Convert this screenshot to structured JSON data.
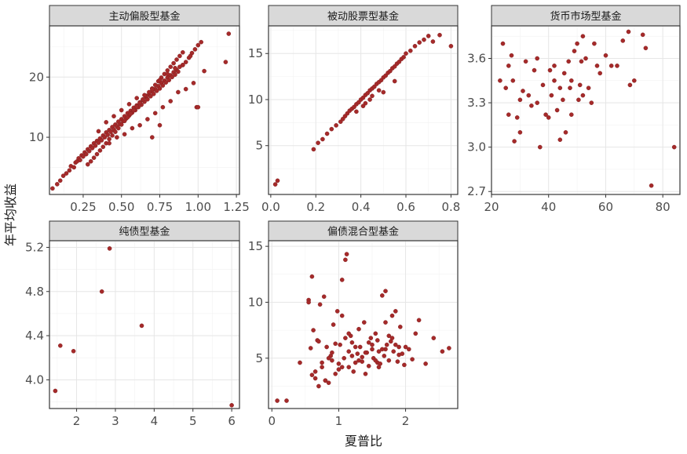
{
  "chart_data": {
    "type": "scatter",
    "xlabel": "夏普比",
    "ylabel": "年平均收益",
    "point_color": "#a52a2a",
    "panels": [
      {
        "title": "主动偏股型基金",
        "xlim": [
          0.03,
          1.27
        ],
        "ylim": [
          0.5,
          28.5
        ],
        "xticks": [
          0.25,
          0.5,
          0.75,
          1.0,
          1.25
        ],
        "xtick_labels": [
          "0.25",
          "0.50",
          "0.75",
          "1.00",
          "1.25"
        ],
        "yticks": [
          10,
          20
        ],
        "ytick_labels": [
          "10",
          "20"
        ],
        "x": [
          0.05,
          0.08,
          0.1,
          0.12,
          0.14,
          0.16,
          0.17,
          0.19,
          0.2,
          0.21,
          0.22,
          0.23,
          0.24,
          0.25,
          0.26,
          0.27,
          0.28,
          0.29,
          0.3,
          0.31,
          0.32,
          0.33,
          0.34,
          0.35,
          0.36,
          0.37,
          0.38,
          0.39,
          0.4,
          0.41,
          0.42,
          0.43,
          0.44,
          0.45,
          0.46,
          0.47,
          0.48,
          0.49,
          0.5,
          0.51,
          0.52,
          0.53,
          0.54,
          0.55,
          0.56,
          0.57,
          0.58,
          0.59,
          0.6,
          0.61,
          0.62,
          0.63,
          0.64,
          0.65,
          0.66,
          0.67,
          0.68,
          0.69,
          0.7,
          0.71,
          0.72,
          0.73,
          0.74,
          0.75,
          0.76,
          0.77,
          0.78,
          0.79,
          0.8,
          0.81,
          0.82,
          0.83,
          0.84,
          0.85,
          0.86,
          0.87,
          0.88,
          0.9,
          0.92,
          0.94,
          0.96,
          0.98,
          1.0,
          1.02,
          1.04,
          1.18,
          1.2,
          0.28,
          0.3,
          0.32,
          0.34,
          0.36,
          0.38,
          0.4,
          0.42,
          0.44,
          0.46,
          0.48,
          0.5,
          0.52,
          0.54,
          0.56,
          0.58,
          0.6,
          0.62,
          0.64,
          0.66,
          0.68,
          0.7,
          0.72,
          0.74,
          0.76,
          0.78,
          0.8,
          0.82,
          0.84,
          0.86,
          0.88,
          0.9,
          0.35,
          0.4,
          0.45,
          0.5,
          0.55,
          0.6,
          0.65,
          0.7,
          0.75,
          0.8,
          0.85,
          0.9,
          0.95,
          0.42,
          0.47,
          0.52,
          0.57,
          0.62,
          0.67,
          0.72,
          0.77,
          0.82,
          0.87,
          0.92,
          0.97,
          0.99,
          1.0,
          0.7,
          0.75
        ],
        "y": [
          1.5,
          2.2,
          2.8,
          3.6,
          4.0,
          4.5,
          5.2,
          5.0,
          5.8,
          6.0,
          6.5,
          6.2,
          7.0,
          6.8,
          7.5,
          7.2,
          8.0,
          7.7,
          8.5,
          8.2,
          9.0,
          8.6,
          9.4,
          9.1,
          9.8,
          9.5,
          10.3,
          10.0,
          10.8,
          10.4,
          11.2,
          10.9,
          11.7,
          11.3,
          12.1,
          11.8,
          12.6,
          12.2,
          13.0,
          12.7,
          13.5,
          13.1,
          14.0,
          13.6,
          14.4,
          14.1,
          14.9,
          14.5,
          15.3,
          15.0,
          15.8,
          15.4,
          16.2,
          15.9,
          16.7,
          16.3,
          17.1,
          16.8,
          17.6,
          17.2,
          18.0,
          17.7,
          18.5,
          18.1,
          19.0,
          18.6,
          19.4,
          19.1,
          19.9,
          19.5,
          20.3,
          20.0,
          20.8,
          20.4,
          21.2,
          20.9,
          21.7,
          22.0,
          22.5,
          23.2,
          24.0,
          24.6,
          25.3,
          25.8,
          21.0,
          22.5,
          27.2,
          5.5,
          6.0,
          6.6,
          7.2,
          7.8,
          8.4,
          9.0,
          9.7,
          10.3,
          10.9,
          11.5,
          12.1,
          12.7,
          13.3,
          13.9,
          14.5,
          15.1,
          15.7,
          16.3,
          16.9,
          17.5,
          18.1,
          18.7,
          19.3,
          19.9,
          20.5,
          21.1,
          21.7,
          22.3,
          22.9,
          23.5,
          24.1,
          11.0,
          12.5,
          13.5,
          14.5,
          15.5,
          16.5,
          17.0,
          18.0,
          19.5,
          20.5,
          21.5,
          22.0,
          23.5,
          9.0,
          10.0,
          10.5,
          11.5,
          12.0,
          13.0,
          14.0,
          15.0,
          16.0,
          17.5,
          18.0,
          19.0,
          15.0,
          15.0,
          10.0,
          12.0
        ]
      },
      {
        "title": "被动股票型基金",
        "xlim": [
          -0.01,
          0.83
        ],
        "ylim": [
          -0.3,
          18.0
        ],
        "xticks": [
          0.0,
          0.2,
          0.4,
          0.6,
          0.8
        ],
        "xtick_labels": [
          "0.0",
          "0.2",
          "0.4",
          "0.6",
          "0.8"
        ],
        "yticks": [
          5,
          10,
          15
        ],
        "ytick_labels": [
          "5",
          "10",
          "15"
        ],
        "x": [
          0.02,
          0.03,
          0.19,
          0.21,
          0.23,
          0.25,
          0.27,
          0.29,
          0.31,
          0.32,
          0.33,
          0.34,
          0.35,
          0.36,
          0.37,
          0.38,
          0.39,
          0.4,
          0.41,
          0.42,
          0.43,
          0.44,
          0.45,
          0.46,
          0.47,
          0.48,
          0.49,
          0.5,
          0.51,
          0.52,
          0.53,
          0.54,
          0.55,
          0.56,
          0.57,
          0.58,
          0.59,
          0.6,
          0.62,
          0.64,
          0.66,
          0.68,
          0.7,
          0.72,
          0.75,
          0.8,
          0.42,
          0.45,
          0.48,
          0.5,
          0.55,
          0.38,
          0.41,
          0.44
        ],
        "y": [
          0.8,
          1.2,
          4.6,
          5.3,
          5.7,
          6.3,
          6.8,
          7.2,
          7.6,
          7.9,
          8.2,
          8.5,
          8.8,
          9.0,
          9.2,
          9.5,
          9.7,
          10.0,
          10.2,
          10.5,
          10.7,
          11.0,
          11.2,
          11.4,
          11.7,
          11.9,
          12.1,
          12.4,
          12.6,
          12.9,
          13.1,
          13.4,
          13.6,
          13.9,
          14.1,
          14.4,
          14.6,
          15.0,
          15.3,
          15.8,
          16.2,
          16.5,
          16.9,
          16.3,
          17.0,
          15.8,
          9.6,
          10.4,
          11.0,
          10.8,
          12.0,
          8.7,
          9.3,
          10.0
        ]
      },
      {
        "title": "货币市场型基金",
        "xlim": [
          20,
          86
        ],
        "ylim": [
          2.68,
          3.82
        ],
        "xticks": [
          20,
          40,
          60,
          80
        ],
        "xtick_labels": [
          "20",
          "40",
          "60",
          "80"
        ],
        "yticks": [
          2.7,
          3.0,
          3.3,
          3.6
        ],
        "ytick_labels": [
          "2.7",
          "3.0",
          "3.3",
          "3.6"
        ],
        "x": [
          23,
          24,
          25,
          26,
          27,
          27.5,
          28,
          29,
          30,
          31,
          32,
          33,
          34,
          35,
          36,
          37,
          38,
          39,
          40,
          40.5,
          41,
          42,
          43,
          44,
          45,
          45.5,
          46,
          47,
          47.5,
          48,
          49,
          50,
          50.5,
          51,
          51.5,
          52,
          53,
          54,
          55,
          56,
          57,
          58,
          60,
          62,
          64,
          66,
          68,
          68.5,
          70,
          73,
          74,
          76,
          84,
          36,
          44,
          48,
          52,
          26,
          30,
          42
        ],
        "y": [
          3.45,
          3.7,
          3.4,
          3.22,
          3.62,
          3.45,
          3.04,
          3.2,
          3.32,
          3.38,
          3.58,
          3.35,
          3.28,
          3.52,
          3.6,
          3.0,
          3.42,
          3.22,
          3.2,
          3.52,
          3.35,
          3.55,
          3.25,
          3.05,
          3.32,
          3.5,
          3.1,
          3.58,
          3.4,
          3.22,
          3.65,
          3.7,
          3.32,
          3.42,
          3.58,
          3.75,
          3.6,
          3.4,
          3.3,
          3.7,
          3.55,
          3.5,
          3.62,
          3.55,
          3.55,
          3.72,
          3.78,
          3.42,
          3.45,
          3.76,
          3.67,
          2.74,
          3.0,
          3.3,
          3.4,
          3.45,
          3.35,
          3.55,
          3.1,
          3.45
        ]
      },
      {
        "title": "纯债型基金",
        "xlim": [
          1.3,
          6.2
        ],
        "ylim": [
          3.74,
          5.26
        ],
        "xticks": [
          2,
          3,
          4,
          5,
          6
        ],
        "xtick_labels": [
          "2",
          "3",
          "4",
          "5",
          "6"
        ],
        "yticks": [
          4.0,
          4.4,
          4.8,
          5.2
        ],
        "ytick_labels": [
          "4.0",
          "4.4",
          "4.8",
          "5.2"
        ],
        "x": [
          1.45,
          1.58,
          1.92,
          2.65,
          2.85,
          3.68,
          6.0
        ],
        "y": [
          3.9,
          4.31,
          4.26,
          4.8,
          5.19,
          4.49,
          3.77
        ]
      },
      {
        "title": "偏债混合型基金",
        "xlim": [
          -0.05,
          2.78
        ],
        "ylim": [
          0.5,
          15.5
        ],
        "xticks": [
          0,
          1,
          2
        ],
        "xtick_labels": [
          "0",
          "1",
          "2"
        ],
        "yticks": [
          5,
          10,
          15
        ],
        "ytick_labels": [
          "5",
          "10",
          "15"
        ],
        "x": [
          0.08,
          0.22,
          0.42,
          0.55,
          0.58,
          0.6,
          0.62,
          0.65,
          0.68,
          0.7,
          0.72,
          0.75,
          0.78,
          0.8,
          0.82,
          0.85,
          0.88,
          0.9,
          0.92,
          0.95,
          0.98,
          1.0,
          1.02,
          1.05,
          1.08,
          1.1,
          1.12,
          1.15,
          1.18,
          1.2,
          1.22,
          1.25,
          1.28,
          1.3,
          1.32,
          1.35,
          1.38,
          1.4,
          1.42,
          1.45,
          1.48,
          1.5,
          1.52,
          1.55,
          1.58,
          1.6,
          1.62,
          1.65,
          1.68,
          1.7,
          1.72,
          1.75,
          1.78,
          1.8,
          1.82,
          1.85,
          1.88,
          1.9,
          1.92,
          1.95,
          1.98,
          2.0,
          2.05,
          2.1,
          2.15,
          2.2,
          2.3,
          2.42,
          2.55,
          2.65,
          0.6,
          0.7,
          0.8,
          0.9,
          1.0,
          1.1,
          1.2,
          1.3,
          1.4,
          1.5,
          1.6,
          1.7,
          1.8,
          1.9,
          0.65,
          0.75,
          0.85,
          0.95,
          1.05,
          1.15,
          1.25,
          1.35,
          1.45,
          1.55,
          1.65,
          1.75,
          1.85,
          0.55,
          1.05,
          1.15,
          1.7,
          1.58
        ],
        "y": [
          1.2,
          1.2,
          4.6,
          10.2,
          5.9,
          12.3,
          7.5,
          3.8,
          6.6,
          2.5,
          9.8,
          4.2,
          10.5,
          3.0,
          6.0,
          2.8,
          5.2,
          4.8,
          8.0,
          6.3,
          9.2,
          4.5,
          6.2,
          8.8,
          5.0,
          13.8,
          14.3,
          4.2,
          7.0,
          6.4,
          3.8,
          4.6,
          5.4,
          7.6,
          6.0,
          4.7,
          8.2,
          3.6,
          5.5,
          4.3,
          6.8,
          5.8,
          5.0,
          7.2,
          4.6,
          5.6,
          4.5,
          10.6,
          5.2,
          11.0,
          6.2,
          4.8,
          6.5,
          8.8,
          5.6,
          9.2,
          4.7,
          6.0,
          7.8,
          5.4,
          4.4,
          6.0,
          5.8,
          4.9,
          7.2,
          8.4,
          4.5,
          6.8,
          5.6,
          5.9,
          3.5,
          6.5,
          3.0,
          5.5,
          4.0,
          6.8,
          5.2,
          4.8,
          5.5,
          6.2,
          4.2,
          5.8,
          6.8,
          5.3,
          3.2,
          4.6,
          5.0,
          3.6,
          4.2,
          7.2,
          6.0,
          5.1,
          6.4,
          4.8,
          5.8,
          7.0,
          6.2,
          10.0,
          12.0,
          5.6,
          8.2,
          6.6
        ]
      }
    ]
  }
}
